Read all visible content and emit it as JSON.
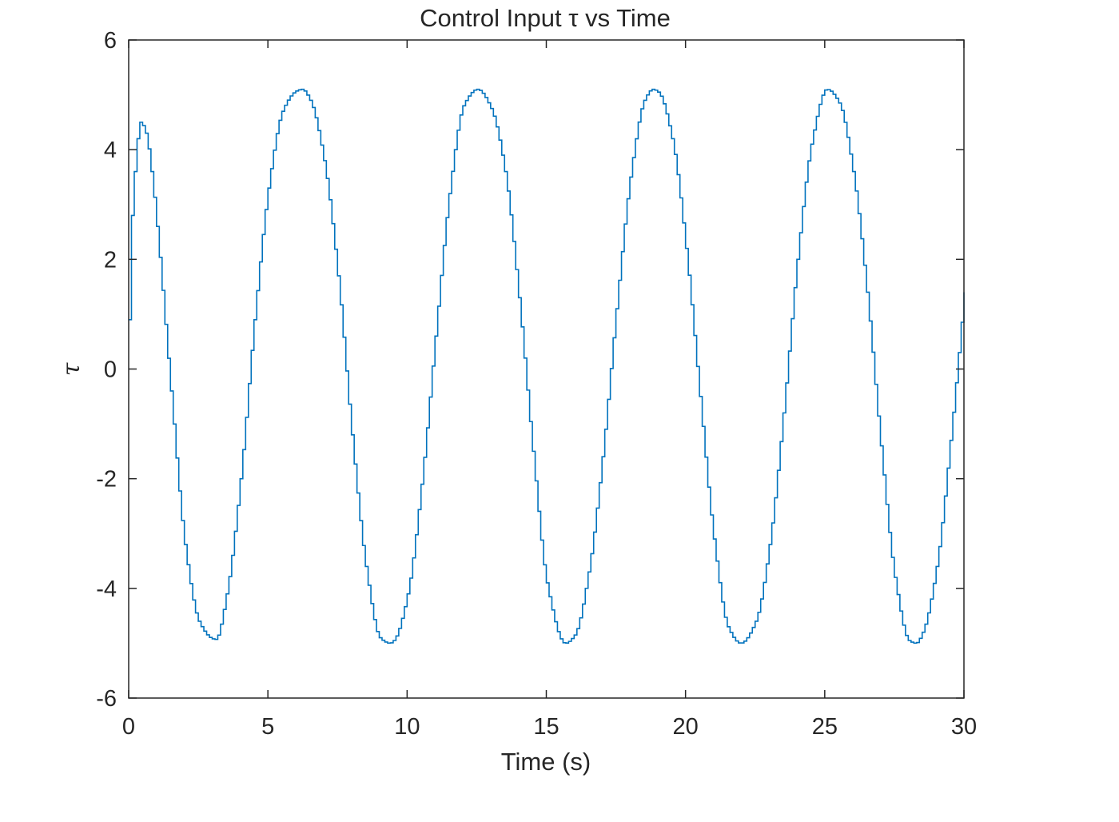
{
  "chart_data": {
    "type": "line",
    "title": "Control Input τ vs Time",
    "xlabel": "Time (s)",
    "ylabel": "τ",
    "xlim": [
      0,
      30
    ],
    "ylim": [
      -6,
      6
    ],
    "xticks": [
      0,
      5,
      10,
      15,
      20,
      25,
      30
    ],
    "yticks": [
      -6,
      -4,
      -2,
      0,
      2,
      4,
      6
    ],
    "xtick_labels": [
      "0",
      "5",
      "10",
      "15",
      "20",
      "25",
      "30"
    ],
    "ytick_labels": [
      "-6",
      "-4",
      "-2",
      "0",
      "2",
      "4",
      "6"
    ],
    "grid": false,
    "legend": "none",
    "line_color": "#0072BD",
    "step_interpolation": true,
    "series": [
      {
        "x": [
          0,
          0.05,
          0.1,
          0.2,
          0.3,
          0.4,
          0.6,
          0.8,
          1.0,
          1.5,
          2.0,
          2.5,
          3.0,
          3.1,
          3.5,
          4.0,
          4.5,
          5.0,
          5.5,
          6.0,
          6.2,
          6.5,
          7.0,
          7.5,
          8.0,
          8.5,
          9.0,
          9.35,
          9.5,
          10.0,
          10.5,
          11.0,
          11.5,
          12.0,
          12.5,
          13.0,
          13.5,
          14.0,
          14.5,
          15.0,
          15.65,
          16.0,
          16.5,
          17.0,
          17.5,
          18.0,
          18.5,
          18.8,
          19.0,
          19.5,
          20.0,
          20.5,
          21.0,
          21.5,
          21.95,
          22.5,
          23.0,
          23.5,
          24.0,
          24.5,
          25.05,
          25.5,
          26.0,
          26.5,
          27.0,
          27.5,
          28.0,
          28.25,
          28.5,
          29.0,
          29.5,
          30.0
        ],
        "y": [
          0.9,
          2.0,
          2.8,
          3.6,
          4.2,
          4.5,
          4.3,
          3.6,
          2.6,
          -0.4,
          -3.2,
          -4.6,
          -4.92,
          -4.93,
          -4.1,
          -2.0,
          0.9,
          3.3,
          4.7,
          5.07,
          5.1,
          4.9,
          3.8,
          1.7,
          -1.2,
          -3.6,
          -4.9,
          -5.0,
          -4.95,
          -4.1,
          -2.1,
          0.6,
          3.2,
          4.8,
          5.1,
          4.75,
          3.6,
          1.3,
          -1.5,
          -3.9,
          -5.0,
          -4.85,
          -3.7,
          -1.6,
          1.1,
          3.5,
          4.9,
          5.1,
          5.05,
          4.2,
          2.2,
          -0.5,
          -3.1,
          -4.7,
          -5.0,
          -4.6,
          -3.2,
          -0.8,
          2.0,
          4.1,
          5.1,
          4.85,
          3.6,
          1.4,
          -1.4,
          -3.8,
          -4.95,
          -5.0,
          -4.8,
          -3.6,
          -1.3,
          1.4
        ]
      }
    ]
  }
}
